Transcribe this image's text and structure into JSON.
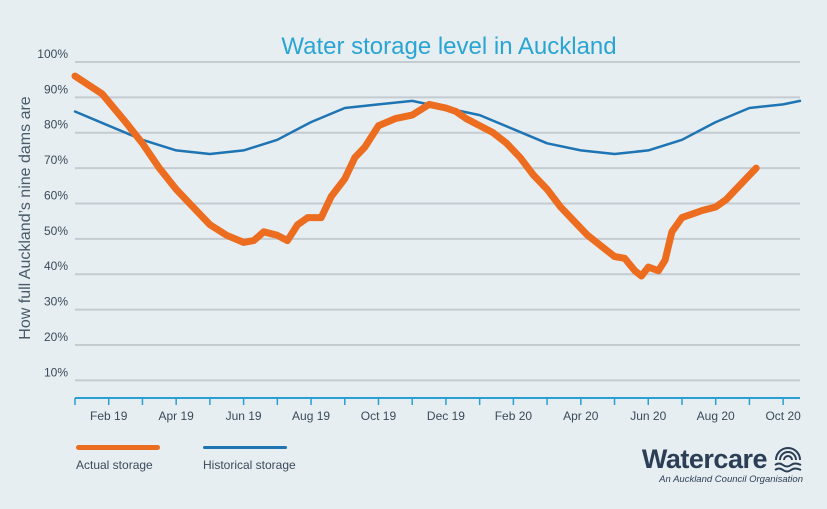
{
  "chart_data": {
    "type": "line",
    "title": "Water storage level in Auckland",
    "ylabel": "How full Auckland’s nine dams are",
    "xlabel": "",
    "ylim": [
      5,
      100
    ],
    "yticks": [
      10,
      20,
      30,
      40,
      50,
      60,
      70,
      80,
      90,
      100
    ],
    "ytick_labels": [
      "10%",
      "20%",
      "30%",
      "40%",
      "50%",
      "60%",
      "70%",
      "80%",
      "90%",
      "100%"
    ],
    "xlim": [
      0,
      21.5
    ],
    "xtick_positions": [
      1,
      3,
      5,
      7,
      9,
      11,
      13,
      15,
      17,
      19,
      21
    ],
    "xtick_labels": [
      "Feb 19",
      "Apr 19",
      "Jun 19",
      "Aug 19",
      "Oct 19",
      "Dec 19",
      "Feb 20",
      "Apr 20",
      "Jun 20",
      "Aug 20",
      "Oct 20"
    ],
    "grid": true,
    "series": [
      {
        "name": "Actual storage",
        "color": "#ec6d1f",
        "x": [
          0,
          0.8,
          1.5,
          2,
          2.5,
          3,
          3.5,
          4,
          4.5,
          5,
          5.3,
          5.6,
          6,
          6.3,
          6.6,
          6.9,
          7.3,
          7.6,
          8,
          8.3,
          8.6,
          9,
          9.5,
          10,
          10.5,
          11,
          11.3,
          11.6,
          12,
          12.4,
          12.8,
          13.2,
          13.6,
          14,
          14.4,
          14.8,
          15.2,
          15.6,
          16,
          16.3,
          16.6,
          16.8,
          17,
          17.3,
          17.5,
          17.7,
          18,
          18.3,
          18.6,
          19,
          19.3,
          19.6,
          20,
          20.2
        ],
        "y": [
          96,
          91,
          83,
          77,
          70,
          64,
          59,
          54,
          51,
          49,
          49.5,
          52,
          51,
          49.5,
          54,
          56,
          56,
          62,
          67,
          73,
          76,
          82,
          84,
          85,
          88,
          87,
          86,
          84,
          82,
          80,
          77,
          73,
          68,
          64,
          59,
          55,
          51,
          48,
          45,
          44.5,
          41,
          39.5,
          42,
          41,
          44,
          52,
          56,
          57,
          58,
          59,
          61,
          64,
          68,
          70
        ]
      },
      {
        "name": "Historical storage",
        "color": "#1f74b3",
        "x": [
          0,
          1,
          2,
          3,
          4,
          5,
          6,
          7,
          8,
          9,
          10,
          11,
          12,
          13,
          14,
          15,
          16,
          17,
          18,
          19,
          20,
          21,
          21.5
        ],
        "y": [
          86,
          82,
          78,
          75,
          74,
          75,
          78,
          83,
          87,
          88,
          89,
          87,
          85,
          81,
          77,
          75,
          74,
          75,
          78,
          83,
          87,
          88,
          89
        ]
      }
    ]
  },
  "legend": [
    {
      "label": "Actual storage",
      "color": "#ec6d1f"
    },
    {
      "label": "Historical storage",
      "color": "#1f74b3"
    }
  ],
  "logo": {
    "name": "Watercare",
    "tagline": "An Auckland Council Organisation"
  },
  "colors": {
    "background": "#e6eef1",
    "title": "#2aa5d3",
    "grid": "#c4ccd2",
    "axis": "#2a9fd1",
    "tick_label": "#3a4a5a",
    "ylabel": "#4a5a68"
  }
}
